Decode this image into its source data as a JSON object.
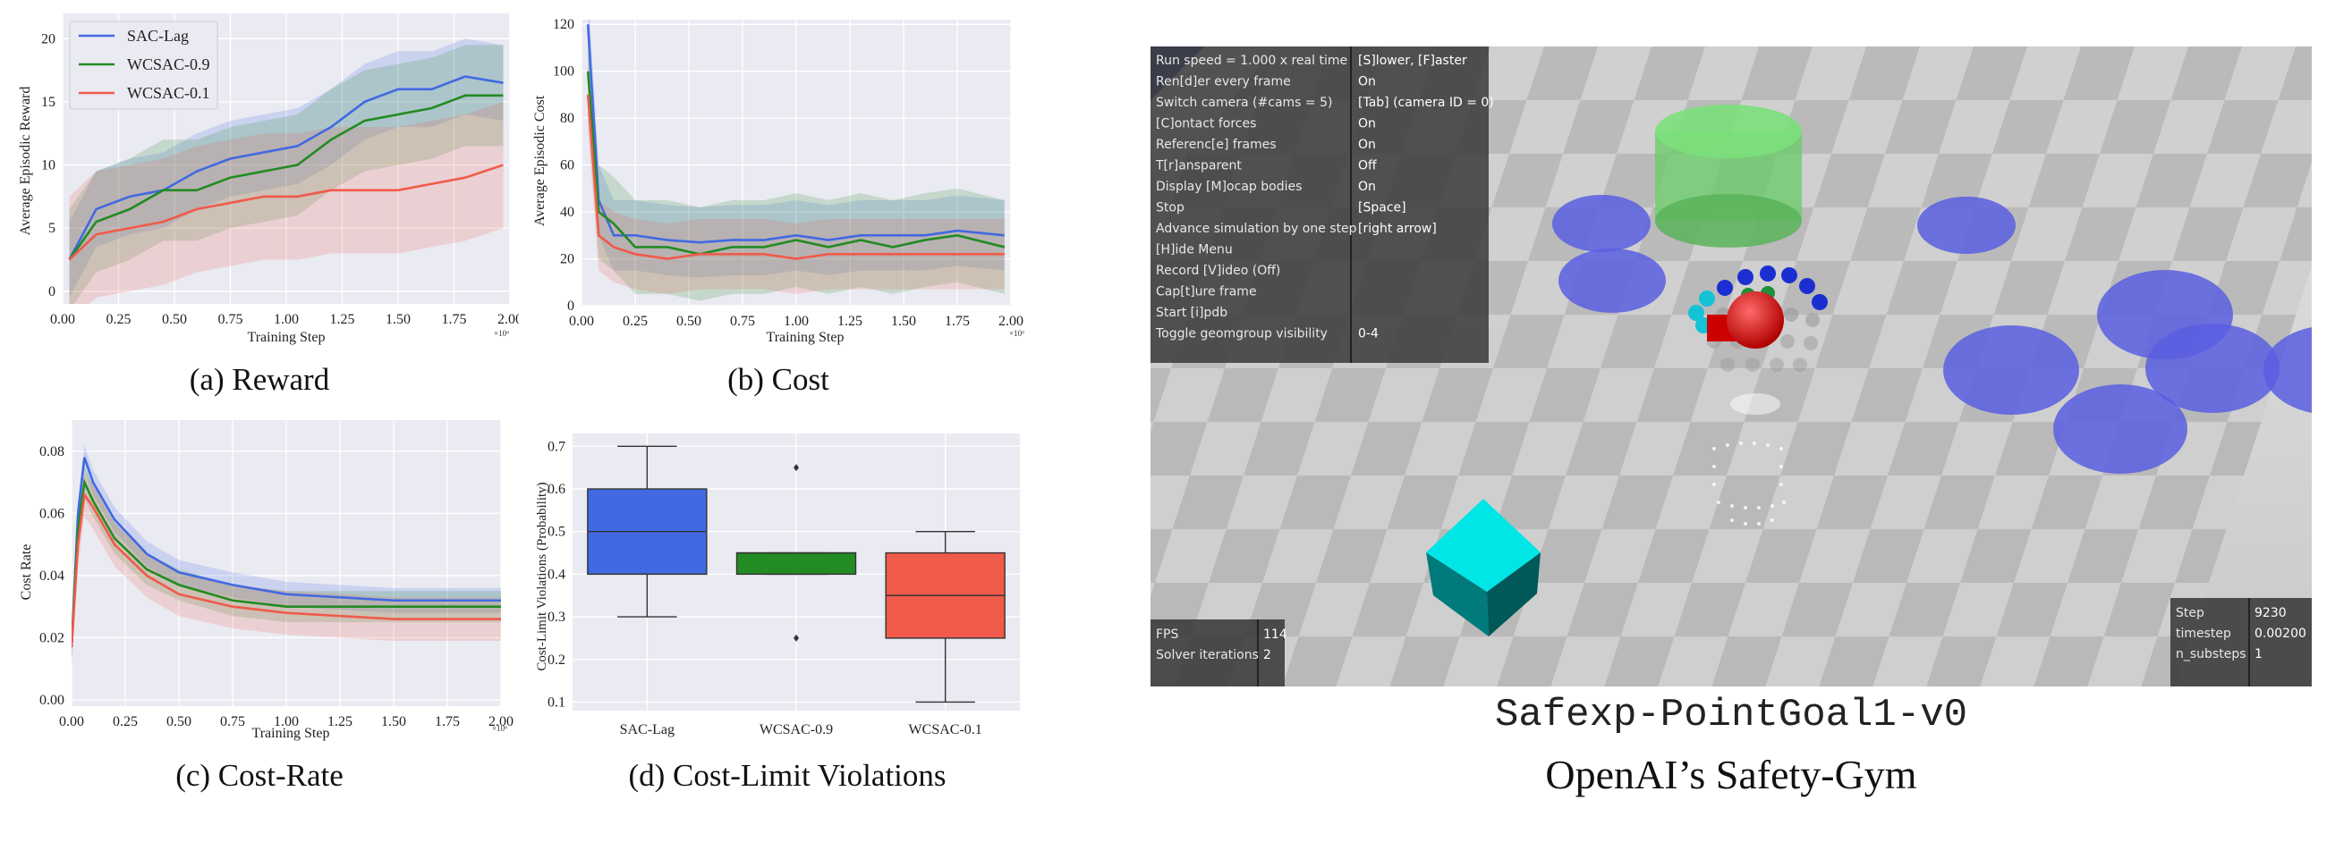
{
  "charts": {
    "colors": {
      "sac": "#4169e1",
      "wc09": "#228b22",
      "wc01": "#f05a4a"
    },
    "legend": [
      "SAC-Lag",
      "WCSAC-0.9",
      "WCSAC-0.1"
    ],
    "exponent": "×10⁶"
  },
  "chart_data": [
    {
      "type": "line",
      "caption": "(a) Reward",
      "xlabel": "Training Step",
      "ylabel": "Average Episodic Reward",
      "xlim": [
        0,
        2.0
      ],
      "ylim": [
        -1,
        22
      ],
      "xticks": [
        "0.00",
        "0.25",
        "0.50",
        "0.75",
        "1.00",
        "1.25",
        "1.50",
        "1.75",
        "2.00"
      ],
      "yticks": [
        "0",
        "5",
        "10",
        "15",
        "20"
      ],
      "x": [
        0.03,
        0.15,
        0.3,
        0.45,
        0.6,
        0.75,
        0.9,
        1.05,
        1.2,
        1.35,
        1.5,
        1.65,
        1.8,
        1.97
      ],
      "series": [
        {
          "name": "SAC-Lag",
          "values": [
            2.5,
            6.5,
            7.5,
            8,
            9.5,
            10.5,
            11,
            11.5,
            13,
            15,
            16,
            16,
            17,
            16.5
          ],
          "band": 3
        },
        {
          "name": "WCSAC-0.9",
          "values": [
            2.5,
            5.5,
            6.5,
            8,
            8,
            9,
            9.5,
            10,
            12,
            13.5,
            14,
            14.5,
            15.5,
            15.5
          ],
          "band": 4
        },
        {
          "name": "WCSAC-0.1",
          "values": [
            2.5,
            4.5,
            5,
            5.5,
            6.5,
            7,
            7.5,
            7.5,
            8,
            8,
            8,
            8.5,
            9,
            10
          ],
          "band": 5
        }
      ]
    },
    {
      "type": "line",
      "caption": "(b) Cost",
      "xlabel": "Training Step",
      "ylabel": "Average Episodic Cost",
      "xlim": [
        0,
        2.0
      ],
      "ylim": [
        0,
        122
      ],
      "xticks": [
        "0.00",
        "0.25",
        "0.50",
        "0.75",
        "1.00",
        "1.25",
        "1.50",
        "1.75",
        "2.00"
      ],
      "yticks": [
        "0",
        "20",
        "40",
        "60",
        "80",
        "100",
        "120"
      ],
      "x": [
        0.03,
        0.08,
        0.15,
        0.25,
        0.4,
        0.55,
        0.7,
        0.85,
        1.0,
        1.15,
        1.3,
        1.45,
        1.6,
        1.75,
        1.97
      ],
      "series": [
        {
          "name": "SAC-Lag",
          "values": [
            120,
            45,
            30,
            30,
            28,
            27,
            28,
            28,
            30,
            28,
            30,
            30,
            30,
            32,
            30
          ],
          "band": 15
        },
        {
          "name": "WCSAC-0.9",
          "values": [
            100,
            40,
            35,
            25,
            25,
            22,
            25,
            25,
            28,
            25,
            28,
            25,
            28,
            30,
            25
          ],
          "band": 20
        },
        {
          "name": "WCSAC-0.1",
          "values": [
            90,
            30,
            25,
            22,
            20,
            22,
            22,
            22,
            20,
            22,
            22,
            22,
            22,
            22,
            22
          ],
          "band": 15
        }
      ]
    },
    {
      "type": "line",
      "caption": "(c) Cost-Rate",
      "xlabel": "Training Step",
      "ylabel": "Cost Rate",
      "xlim": [
        0,
        2.0
      ],
      "ylim": [
        -0.002,
        0.09
      ],
      "xticks": [
        "0.00",
        "0.25",
        "0.50",
        "0.75",
        "1.00",
        "1.25",
        "1.50",
        "1.75",
        "2.00"
      ],
      "yticks": [
        "0.00",
        "0.02",
        "0.04",
        "0.06",
        "0.08"
      ],
      "x": [
        0.0,
        0.03,
        0.06,
        0.1,
        0.2,
        0.35,
        0.5,
        0.75,
        1.0,
        1.25,
        1.5,
        1.75,
        2.0
      ],
      "series": [
        {
          "name": "SAC-Lag",
          "values": [
            0.017,
            0.06,
            0.078,
            0.07,
            0.058,
            0.047,
            0.041,
            0.037,
            0.034,
            0.033,
            0.032,
            0.032,
            0.032
          ],
          "band": 0.004
        },
        {
          "name": "WCSAC-0.9",
          "values": [
            0.017,
            0.055,
            0.07,
            0.064,
            0.052,
            0.042,
            0.037,
            0.032,
            0.03,
            0.03,
            0.03,
            0.03,
            0.03
          ],
          "band": 0.005
        },
        {
          "name": "WCSAC-0.1",
          "values": [
            0.017,
            0.05,
            0.066,
            0.062,
            0.05,
            0.04,
            0.034,
            0.03,
            0.028,
            0.027,
            0.026,
            0.026,
            0.026
          ],
          "band": 0.007
        }
      ]
    },
    {
      "type": "box",
      "caption": "(d) Cost-Limit Violations",
      "ylabel": "Cost-Limit Violations (Probability)",
      "ylim": [
        0.08,
        0.73
      ],
      "yticks": [
        "0.1",
        "0.2",
        "0.3",
        "0.4",
        "0.5",
        "0.6",
        "0.7"
      ],
      "categories": [
        "SAC-Lag",
        "WCSAC-0.9",
        "WCSAC-0.1"
      ],
      "boxes": [
        {
          "whislo": 0.3,
          "q1": 0.4,
          "med": 0.5,
          "q3": 0.6,
          "whishi": 0.7,
          "fliers": []
        },
        {
          "whislo": 0.4,
          "q1": 0.4,
          "med": 0.45,
          "q3": 0.45,
          "whishi": 0.45,
          "fliers": [
            0.65,
            0.25
          ]
        },
        {
          "whislo": 0.1,
          "q1": 0.25,
          "med": 0.35,
          "q3": 0.45,
          "whishi": 0.5,
          "fliers": []
        }
      ]
    }
  ],
  "sim": {
    "env_name": "Safexp-PointGoal1-v0",
    "caption": "OpenAI’s Safety-Gym",
    "menu": [
      {
        "k": "Run speed = 1.000 x real time",
        "v": "[S]lower, [F]aster"
      },
      {
        "k": "Ren[d]er every frame",
        "v": "On"
      },
      {
        "k": "Switch camera (#cams = 5)",
        "v": "[Tab] (camera ID = 0)"
      },
      {
        "k": "[C]ontact forces",
        "v": "On"
      },
      {
        "k": "Referenc[e] frames",
        "v": "On"
      },
      {
        "k": "T[r]ansparent",
        "v": "Off"
      },
      {
        "k": "Display [M]ocap bodies",
        "v": "On"
      },
      {
        "k": "Stop",
        "v": "[Space]"
      },
      {
        "k": "Advance simulation by one step",
        "v": "[right arrow]"
      },
      {
        "k": "[H]ide Menu",
        "v": ""
      },
      {
        "k": "Record [V]ideo (Off)",
        "v": ""
      },
      {
        "k": "Cap[t]ure frame",
        "v": ""
      },
      {
        "k": "Start [i]pdb",
        "v": ""
      },
      {
        "k": "Toggle geomgroup visibility",
        "v": "0-4"
      }
    ],
    "fps": [
      {
        "k": "FPS",
        "v": "114"
      },
      {
        "k": "Solver iterations",
        "v": "2"
      }
    ],
    "stats": [
      {
        "k": "Step",
        "v": "9230"
      },
      {
        "k": "timestep",
        "v": "0.00200"
      },
      {
        "k": "n_substeps",
        "v": "1"
      }
    ]
  }
}
